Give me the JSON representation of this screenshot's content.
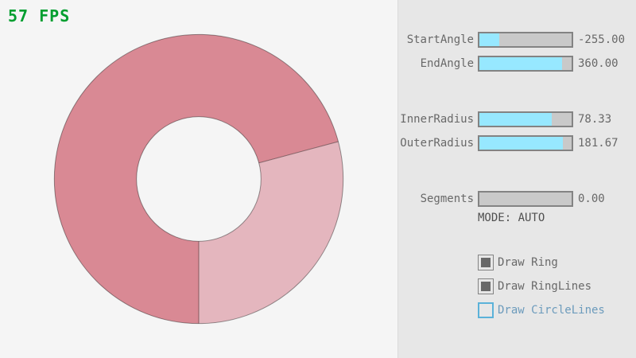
{
  "colors": {
    "background": "#F5F5F5",
    "panel_background": "#E7E7E7",
    "panel_divider": "#DADADA",
    "slider_track": "#C9C9C9",
    "slider_fill": "#97E8FF",
    "slider_border": "#838383",
    "label_text": "#686868",
    "mode_text": "#505050",
    "checkbox_check": "#686868",
    "focus_border": "#5BB2D9",
    "focus_text": "#6C9BBC"
  },
  "fps": {
    "text": "57 FPS",
    "color": "#009E2F"
  },
  "ring": {
    "start_angle": -255.0,
    "end_angle": 360.0,
    "inner_radius": 78.33,
    "outer_radius": 181.67,
    "segments": 0,
    "single_pass_color": "#E4B6BE",
    "double_pass_color": "#D98994",
    "outline_color": "rgba(0,0,0,0.4)"
  },
  "panel": {
    "sliders": [
      {
        "label": "StartAngle",
        "value": "-255.00",
        "fill_percent": 21.67
      },
      {
        "label": "EndAngle",
        "value": "360.00",
        "fill_percent": 90.0
      },
      {
        "label": "InnerRadius",
        "value": "78.33",
        "fill_percent": 78.33
      },
      {
        "label": "OuterRadius",
        "value": "181.67",
        "fill_percent": 90.83
      },
      {
        "label": "Segments",
        "value": "0.00",
        "fill_percent": 0
      }
    ],
    "mode_text": "MODE: AUTO",
    "checkboxes": [
      {
        "label": "Draw Ring",
        "checked": true,
        "focused": false
      },
      {
        "label": "Draw RingLines",
        "checked": true,
        "focused": false
      },
      {
        "label": "Draw CircleLines",
        "checked": false,
        "focused": true
      }
    ]
  }
}
